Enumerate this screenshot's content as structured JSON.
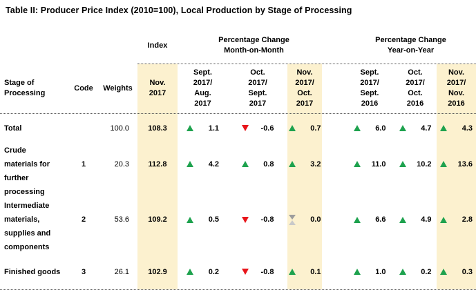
{
  "title": "Table II: Producer Price Index (2010=100), Local Production by Stage of Processing",
  "colors": {
    "highlight": "#fcf1cf",
    "up": "#1ea24e",
    "down": "#e8151b",
    "flat_top": "#9d9d9d",
    "flat_bottom": "#c9c9c9"
  },
  "table": {
    "group_headers": {
      "index": "Index",
      "mom": "Percentage Change\nMonth-on-Month",
      "yoy": "Percentage Change\nYear-on-Year"
    },
    "column_headers": {
      "stage": "Stage of\nProcessing",
      "code": "Code",
      "weights": "Weights",
      "index_month": "Nov.\n2017",
      "mom": [
        "Sept.\n2017/\nAug.\n2017",
        "Oct.\n2017/\nSept.\n2017",
        "Nov.\n2017/\nOct.\n2017"
      ],
      "yoy": [
        "Sept.\n2017/\nSept.\n2016",
        "Oct.\n2017/\nOct.\n2016",
        "Nov.\n2017/\nNov.\n2016"
      ]
    },
    "rows": [
      {
        "stage": "Total",
        "code": "",
        "weights": "100.0",
        "index": "108.3",
        "mom": [
          {
            "dir": "up",
            "value": "1.1"
          },
          {
            "dir": "down",
            "value": "-0.6"
          },
          {
            "dir": "up",
            "value": "0.7"
          }
        ],
        "yoy": [
          {
            "dir": "up",
            "value": "6.0"
          },
          {
            "dir": "up",
            "value": "4.7"
          },
          {
            "dir": "up",
            "value": "4.3"
          }
        ]
      },
      {
        "stage": "Crude\nmaterials for\nfurther\nprocessing",
        "code": "1",
        "weights": "20.3",
        "index": "112.8",
        "mom": [
          {
            "dir": "up",
            "value": "4.2"
          },
          {
            "dir": "up",
            "value": "0.8"
          },
          {
            "dir": "up",
            "value": "3.2"
          }
        ],
        "yoy": [
          {
            "dir": "up",
            "value": "11.0"
          },
          {
            "dir": "up",
            "value": "10.2"
          },
          {
            "dir": "up",
            "value": "13.6"
          }
        ]
      },
      {
        "stage": "Intermediate\nmaterials,\nsupplies and\ncomponents",
        "code": "2",
        "weights": "53.6",
        "index": "109.2",
        "mom": [
          {
            "dir": "up",
            "value": "0.5"
          },
          {
            "dir": "down",
            "value": "-0.8"
          },
          {
            "dir": "flat",
            "value": "0.0"
          }
        ],
        "yoy": [
          {
            "dir": "up",
            "value": "6.6"
          },
          {
            "dir": "up",
            "value": "4.9"
          },
          {
            "dir": "up",
            "value": "2.8"
          }
        ]
      },
      {
        "stage": "Finished goods",
        "code": "3",
        "weights": "26.1",
        "index": "102.9",
        "mom": [
          {
            "dir": "up",
            "value": "0.2"
          },
          {
            "dir": "down",
            "value": "-0.8"
          },
          {
            "dir": "up",
            "value": "0.1"
          }
        ],
        "yoy": [
          {
            "dir": "up",
            "value": "1.0"
          },
          {
            "dir": "up",
            "value": "0.2"
          },
          {
            "dir": "up",
            "value": "0.3"
          }
        ]
      }
    ]
  }
}
